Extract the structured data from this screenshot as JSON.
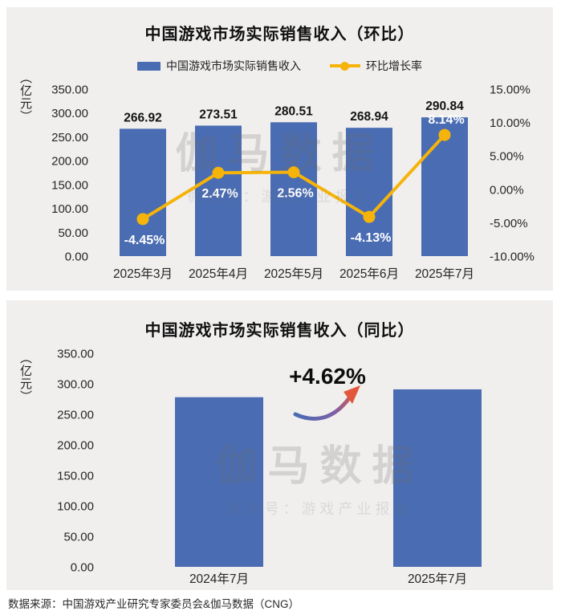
{
  "page": {
    "background": "#ffffff",
    "panel_background": "#f0efee"
  },
  "colors": {
    "bar": "#4a6cb2",
    "line": "#f6b40a",
    "bar_value_label": "#141414",
    "pct_label": "#ffffff",
    "axis_text": "#262626",
    "title_text": "#101010",
    "arrow_start": "#4a6cb2",
    "arrow_mid": "#7e5fa8",
    "arrow_end": "#e2573c"
  },
  "watermark": {
    "line1": "伽马数据",
    "line2": "微信号：游戏产业报告"
  },
  "footer": {
    "source": "数据来源：中国游戏产业研究专家委员会&伽马数据（CNG）"
  },
  "chart_data": [
    {
      "type": "bar+line",
      "title": "中国游戏市场实际销售收入（环比）",
      "unit_label": "（亿元）",
      "categories": [
        "2025年3月",
        "2025年4月",
        "2025年5月",
        "2025年6月",
        "2025年7月"
      ],
      "series": [
        {
          "name": "中国游戏市场实际销售收入",
          "type": "bar",
          "axis": "left",
          "values": [
            266.92,
            273.51,
            280.51,
            268.94,
            290.84
          ],
          "labels": [
            "266.92",
            "273.51",
            "280.51",
            "268.94",
            "290.84"
          ]
        },
        {
          "name": "环比增长率",
          "type": "line",
          "axis": "right",
          "values": [
            -4.45,
            2.47,
            2.56,
            -4.13,
            8.14
          ],
          "labels": [
            "-4.45%",
            "2.47%",
            "2.56%",
            "-4.13%",
            "8.14%"
          ]
        }
      ],
      "left_axis": {
        "min": 0,
        "max": 350,
        "ticks": [
          "350.00",
          "300.00",
          "250.00",
          "200.00",
          "150.00",
          "100.00",
          "50.00",
          "0.00"
        ]
      },
      "right_axis": {
        "min": -10,
        "max": 15,
        "ticks": [
          "15.00%",
          "10.00%",
          "5.00%",
          "0.00%",
          "-5.00%",
          "-10.00%"
        ]
      },
      "legend_position": "top",
      "grid": false
    },
    {
      "type": "bar",
      "title": "中国游戏市场实际销售收入（同比）",
      "unit_label": "（亿元）",
      "categories": [
        "2024年7月",
        "2025年7月"
      ],
      "values": [
        278,
        290.84
      ],
      "left_axis": {
        "min": 0,
        "max": 350,
        "ticks": [
          "350.00",
          "300.00",
          "250.00",
          "200.00",
          "150.00",
          "100.00",
          "50.00",
          "0.00"
        ]
      },
      "annotation": "+4.62%",
      "grid": false
    }
  ]
}
